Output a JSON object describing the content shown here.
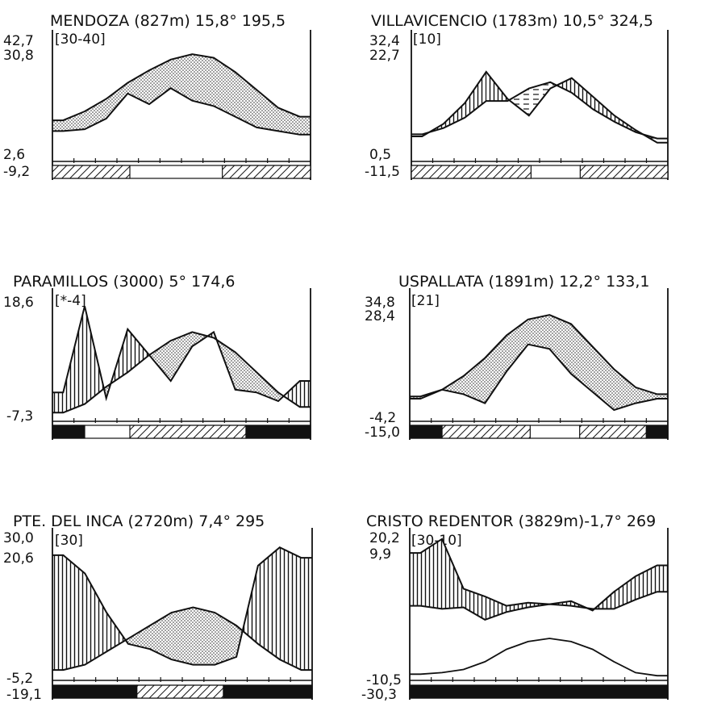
{
  "chart_data": [
    {
      "type": "climate-diagram",
      "title": "MENDOZA (827m) 15,8° 195,5",
      "bracket": "[30-40]",
      "ytick_labels": [
        "42,7",
        "30,8",
        "2,6",
        "-9,2"
      ],
      "months": 12,
      "temperature": [
        6.5,
        9.0,
        12.5,
        17.0,
        20.5,
        23.5,
        25.0,
        24.0,
        20.0,
        15.0,
        10.0,
        7.5
      ],
      "precipitation": [
        3.5,
        4.0,
        7.0,
        14.0,
        11.0,
        15.5,
        12.0,
        10.5,
        7.5,
        4.5,
        3.5,
        2.5
      ],
      "frost_bar": {
        "hatched_months": [
          [
            0,
            3.6
          ],
          [
            7.9,
            12
          ]
        ],
        "solid_months": []
      },
      "shading": "dotted"
    },
    {
      "type": "climate-diagram",
      "title": "VILLAVICENCIO (1783m) 10,5° 324,5",
      "bracket": "[10]",
      "ytick_labels": [
        "32,4",
        "22,7",
        "0,5",
        "-11,5"
      ],
      "months": 12,
      "temperature": [
        6.5,
        8.0,
        10.5,
        14.5,
        14.5,
        17.5,
        19.0,
        16.5,
        12.5,
        9.5,
        7.0,
        5.5
      ],
      "precipitation": [
        6.0,
        9.0,
        14.0,
        21.5,
        15.0,
        11.0,
        17.5,
        20.0,
        15.5,
        11.0,
        7.5,
        4.5
      ],
      "frost_bar": {
        "hatched_months": [
          [
            0,
            5.6
          ],
          [
            7.9,
            12
          ]
        ],
        "solid_months": []
      },
      "shading": "vertical-and-dashed"
    },
    {
      "type": "climate-diagram",
      "title": "PARAMILLOS (3000) 5° 174,6",
      "bracket": "[*-4]",
      "ytick_labels": [
        "18,6",
        "-7,3"
      ],
      "months": 12,
      "temperature": [
        -8.5,
        -7.0,
        -4.0,
        -1.5,
        1.5,
        4.0,
        5.5,
        4.5,
        2.0,
        -1.5,
        -5.0,
        -7.5
      ],
      "precipitation": [
        -5.0,
        10.0,
        -6.0,
        6.0,
        1.5,
        -3.0,
        3.0,
        5.5,
        -4.5,
        -5.0,
        -6.5,
        -3.0
      ],
      "frost_bar": {
        "hatched_months": [
          [
            3.6,
            9.0
          ]
        ],
        "solid_months": [
          [
            0,
            1.5
          ],
          [
            9.0,
            12
          ]
        ]
      },
      "frost_note": "?",
      "shading": "vertical-and-dotted"
    },
    {
      "type": "climate-diagram",
      "title": "USPALLATA (1891m) 12,2° 133,1",
      "bracket": "[21]",
      "ytick_labels": [
        "34,8",
        "28,4",
        "-4,2",
        "-15,0"
      ],
      "months": 12,
      "temperature": [
        -2.5,
        -1.0,
        2.0,
        6.0,
        11.0,
        14.5,
        15.5,
        13.5,
        8.5,
        3.5,
        -0.5,
        -2.0
      ],
      "precipitation": [
        -3.0,
        -1.0,
        -2.0,
        -4.0,
        3.0,
        9.0,
        8.0,
        2.5,
        -1.5,
        -5.5,
        -4.0,
        -3.0
      ],
      "frost_bar": {
        "hatched_months": [
          [
            1.5,
            5.6
          ],
          [
            7.9,
            11.0
          ]
        ],
        "solid_months": [
          [
            0,
            1.5
          ],
          [
            11.0,
            12
          ]
        ]
      },
      "shading": "dotted"
    },
    {
      "type": "climate-diagram",
      "title": "PTE. DEL INCA (2720m) 7,4° 295",
      "bracket": "[30]",
      "ytick_labels": [
        "30,0",
        "20,6",
        "-5,2",
        "-19,1"
      ],
      "months": 12,
      "temperature": [
        -4.0,
        -3.0,
        -0.5,
        2.0,
        4.5,
        7.0,
        8.0,
        7.0,
        4.5,
        1.0,
        -2.0,
        -4.0
      ],
      "precipitation": [
        18.0,
        14.5,
        7.0,
        1.0,
        0.0,
        -2.0,
        -3.0,
        -3.0,
        -1.5,
        16.0,
        19.5,
        17.5
      ],
      "frost_bar": {
        "hatched_months": [
          [
            3.9,
            7.9
          ]
        ],
        "solid_months": [
          [
            0,
            3.9
          ],
          [
            7.9,
            12
          ]
        ]
      },
      "shading": "vertical-and-dotted"
    },
    {
      "type": "climate-diagram",
      "title": "CRISTO REDENTOR (3829m)-1,7° 269",
      "bracket": "[30-10]",
      "ytick_labels": [
        "20,2",
        "9,9",
        "-10,5",
        "-30,3"
      ],
      "months": 12,
      "temperature": [
        -11.0,
        -12.0,
        -11.5,
        -15.5,
        -13.0,
        -11.5,
        -10.5,
        -11.0,
        -12.0,
        -12.0,
        -9.0,
        -6.5
      ],
      "precipitation": [
        6.0,
        10.5,
        -5.5,
        -8.0,
        -11.0,
        -10.0,
        -10.5,
        -9.5,
        -12.5,
        -6.5,
        -1.5,
        2.0
      ],
      "extra_line": [
        -33.0,
        -32.5,
        -31.5,
        -29.0,
        -25.0,
        -22.5,
        -21.5,
        -22.5,
        -25.0,
        -29.0,
        -32.5,
        -33.5
      ],
      "frost_bar": {
        "hatched_months": [],
        "solid_months": [
          [
            0,
            12
          ]
        ]
      },
      "shading": "vertical-and-dotted"
    }
  ]
}
